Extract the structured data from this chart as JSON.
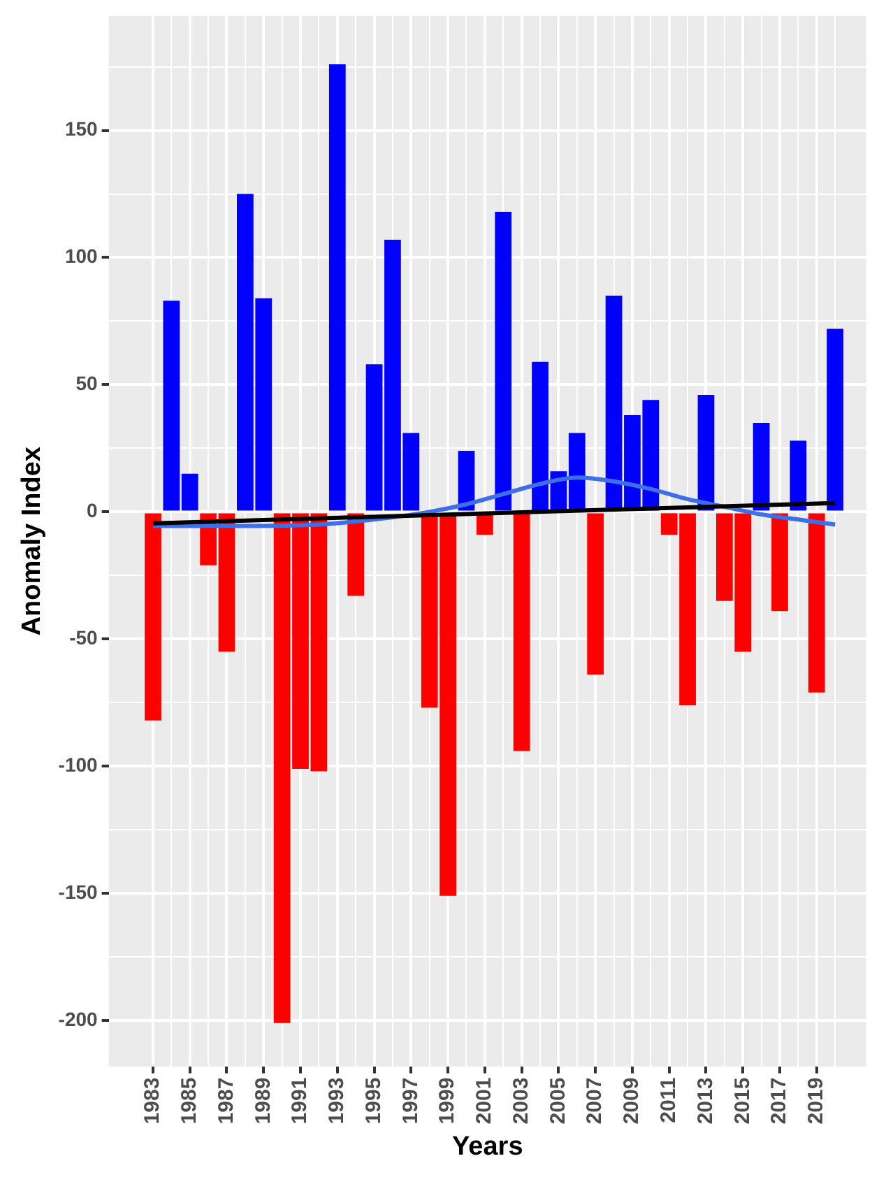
{
  "chart_data": {
    "type": "bar",
    "xlabel": "Years",
    "ylabel": "Anomaly Index",
    "x": [
      1983,
      1984,
      1985,
      1986,
      1987,
      1988,
      1989,
      1990,
      1991,
      1992,
      1993,
      1994,
      1995,
      1996,
      1997,
      1998,
      1999,
      2000,
      2001,
      2002,
      2003,
      2004,
      2005,
      2006,
      2007,
      2008,
      2009,
      2010,
      2011,
      2012,
      2013,
      2014,
      2015,
      2016,
      2017,
      2018,
      2019,
      2020
    ],
    "series": [
      {
        "values": [
          -82,
          83,
          15,
          -21,
          -55,
          125,
          84,
          -201,
          -101,
          -102,
          176,
          -33,
          58,
          107,
          31,
          -77,
          -151,
          24,
          -9,
          118,
          -94,
          59,
          16,
          31,
          -64,
          85,
          38,
          44,
          -9,
          -76,
          46,
          -35,
          -55,
          35,
          -39,
          28,
          -71,
          72
        ],
        "colors": [
          "#ff0000",
          "#0000ff",
          "#0000ff",
          "#ff0000",
          "#ff0000",
          "#0000ff",
          "#0000ff",
          "#ff0000",
          "#ff0000",
          "#ff0000",
          "#0000ff",
          "#ff0000",
          "#0000ff",
          "#0000ff",
          "#0000ff",
          "#ff0000",
          "#ff0000",
          "#0000ff",
          "#ff0000",
          "#0000ff",
          "#ff0000",
          "#0000ff",
          "#0000ff",
          "#0000ff",
          "#ff0000",
          "#0000ff",
          "#0000ff",
          "#0000ff",
          "#ff0000",
          "#ff0000",
          "#0000ff",
          "#ff0000",
          "#ff0000",
          "#0000ff",
          "#ff0000",
          "#0000ff",
          "#ff0000",
          "#0000ff"
        ]
      },
      {
        "type": "line",
        "color": "#000000",
        "x": [
          1983,
          2020
        ],
        "values": [
          -4.5,
          3.5
        ]
      },
      {
        "type": "line",
        "color": "#3d6fe8",
        "x": [
          1983,
          1986,
          1989,
          1992,
          1995,
          1998,
          2000,
          2002,
          2004,
          2006,
          2008,
          2010,
          2012,
          2014,
          2016,
          2018,
          2020
        ],
        "values": [
          -5.5,
          -5.5,
          -5.5,
          -5,
          -3,
          0,
          3,
          7,
          11,
          13.5,
          12,
          9,
          5,
          2,
          -1,
          -3,
          -5
        ]
      }
    ],
    "xlim": [
      1980.6,
      2021.7
    ],
    "xticks": [
      1983,
      {
        "value": 1984,
        "label": null
      },
      1985,
      {
        "value": 1986,
        "label": null
      },
      1987,
      {
        "value": 1988,
        "label": null
      },
      1989,
      {
        "value": 1990,
        "label": null
      },
      1991,
      {
        "value": 1992,
        "label": null
      },
      1993,
      {
        "value": 1994,
        "label": null
      },
      1995,
      {
        "value": 1996,
        "label": null
      },
      1997,
      {
        "value": 1998,
        "label": null
      },
      1999,
      {
        "value": 2000,
        "label": null
      },
      2001,
      {
        "value": 2002,
        "label": null
      },
      2003,
      {
        "value": 2004,
        "label": null
      },
      2005,
      {
        "value": 2006,
        "label": null
      },
      2007,
      {
        "value": 2008,
        "label": null
      },
      2009,
      {
        "value": 2010,
        "label": null
      },
      2011,
      {
        "value": 2012,
        "label": null
      },
      2013,
      {
        "value": 2014,
        "label": null
      },
      2015,
      {
        "value": 2016,
        "label": null
      },
      2017,
      {
        "value": 2018,
        "label": null
      },
      2019,
      {
        "value": 2020,
        "label": null
      }
    ],
    "ylim": [
      -218,
      195
    ],
    "yticks": [
      -200,
      {
        "value": -175,
        "label": null
      },
      -150,
      {
        "value": -125,
        "label": null
      },
      -100,
      {
        "value": -75,
        "label": null
      },
      -50,
      {
        "value": -25,
        "label": null
      },
      0,
      {
        "value": 25,
        "label": null
      },
      50,
      {
        "value": 75,
        "label": null
      },
      100,
      {
        "value": 125,
        "label": null
      },
      150,
      {
        "value": 175,
        "label": null
      }
    ],
    "grid": true,
    "legend": false
  }
}
